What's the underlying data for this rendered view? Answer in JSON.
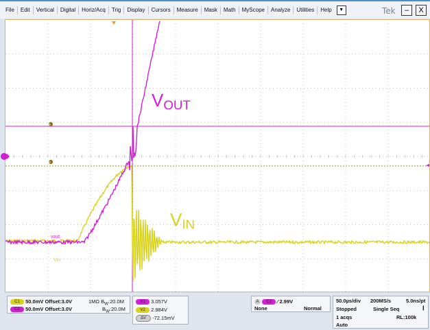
{
  "menu": [
    "File",
    "Edit",
    "Vertical",
    "Digital",
    "Horiz/Acq",
    "Trig",
    "Display",
    "Cursors",
    "Measure",
    "Mask",
    "Math",
    "MyScope",
    "Analyze",
    "Utilities",
    "Help"
  ],
  "menu_dropdown_glyph": "▼",
  "window": {
    "brand": "Tek",
    "minimize": "–",
    "close": "X"
  },
  "waveform": {
    "vout_label": "VOUT",
    "vout_main": "V",
    "vout_sub": "OUT",
    "vin_label": "VIN",
    "vin_main": "V",
    "vin_sub": "IN",
    "marker_a": "a",
    "marker_b": "b",
    "colors": {
      "vout": "#d21fd6",
      "vin": "#d8d21a",
      "grid": "#c4c4c4"
    }
  },
  "channels": [
    {
      "badge": "C1",
      "scale": "50.0mV",
      "offset": "Offset:3.0V",
      "impedance": "1MΩ",
      "bw": "B",
      "bw_sub": "W",
      "bw_val": ":20.0M",
      "color": "#d8d21a"
    },
    {
      "badge": "C2",
      "scale": "50.0mV",
      "offset": "Offset:3.0V",
      "impedance": "",
      "bw": "B",
      "bw_sub": "W",
      "bw_val": ":20.0M",
      "color": "#d21fd6"
    }
  ],
  "cursors": {
    "v1_badge": "V1",
    "v1_value": "3.057V",
    "v2_badge": "V2",
    "v2_value": "2.984V",
    "dv_badge": "ΔV",
    "dv_value": "-72.15mV"
  },
  "trigger": {
    "badge_a": "A",
    "channel_badge": "C2",
    "slope": "⁄",
    "level": "2.99V",
    "coupling": "None",
    "mode": "Normal"
  },
  "acquisition": {
    "timebase": "50.0µs/div",
    "sample_rate": "200MS/s",
    "resolution": "5.0ns/pt",
    "state": "Stopped",
    "seq_mode": "Single Seq",
    "acqs": "1 acqs",
    "record_length": "RL:100k",
    "trigger_mode": "Auto"
  }
}
